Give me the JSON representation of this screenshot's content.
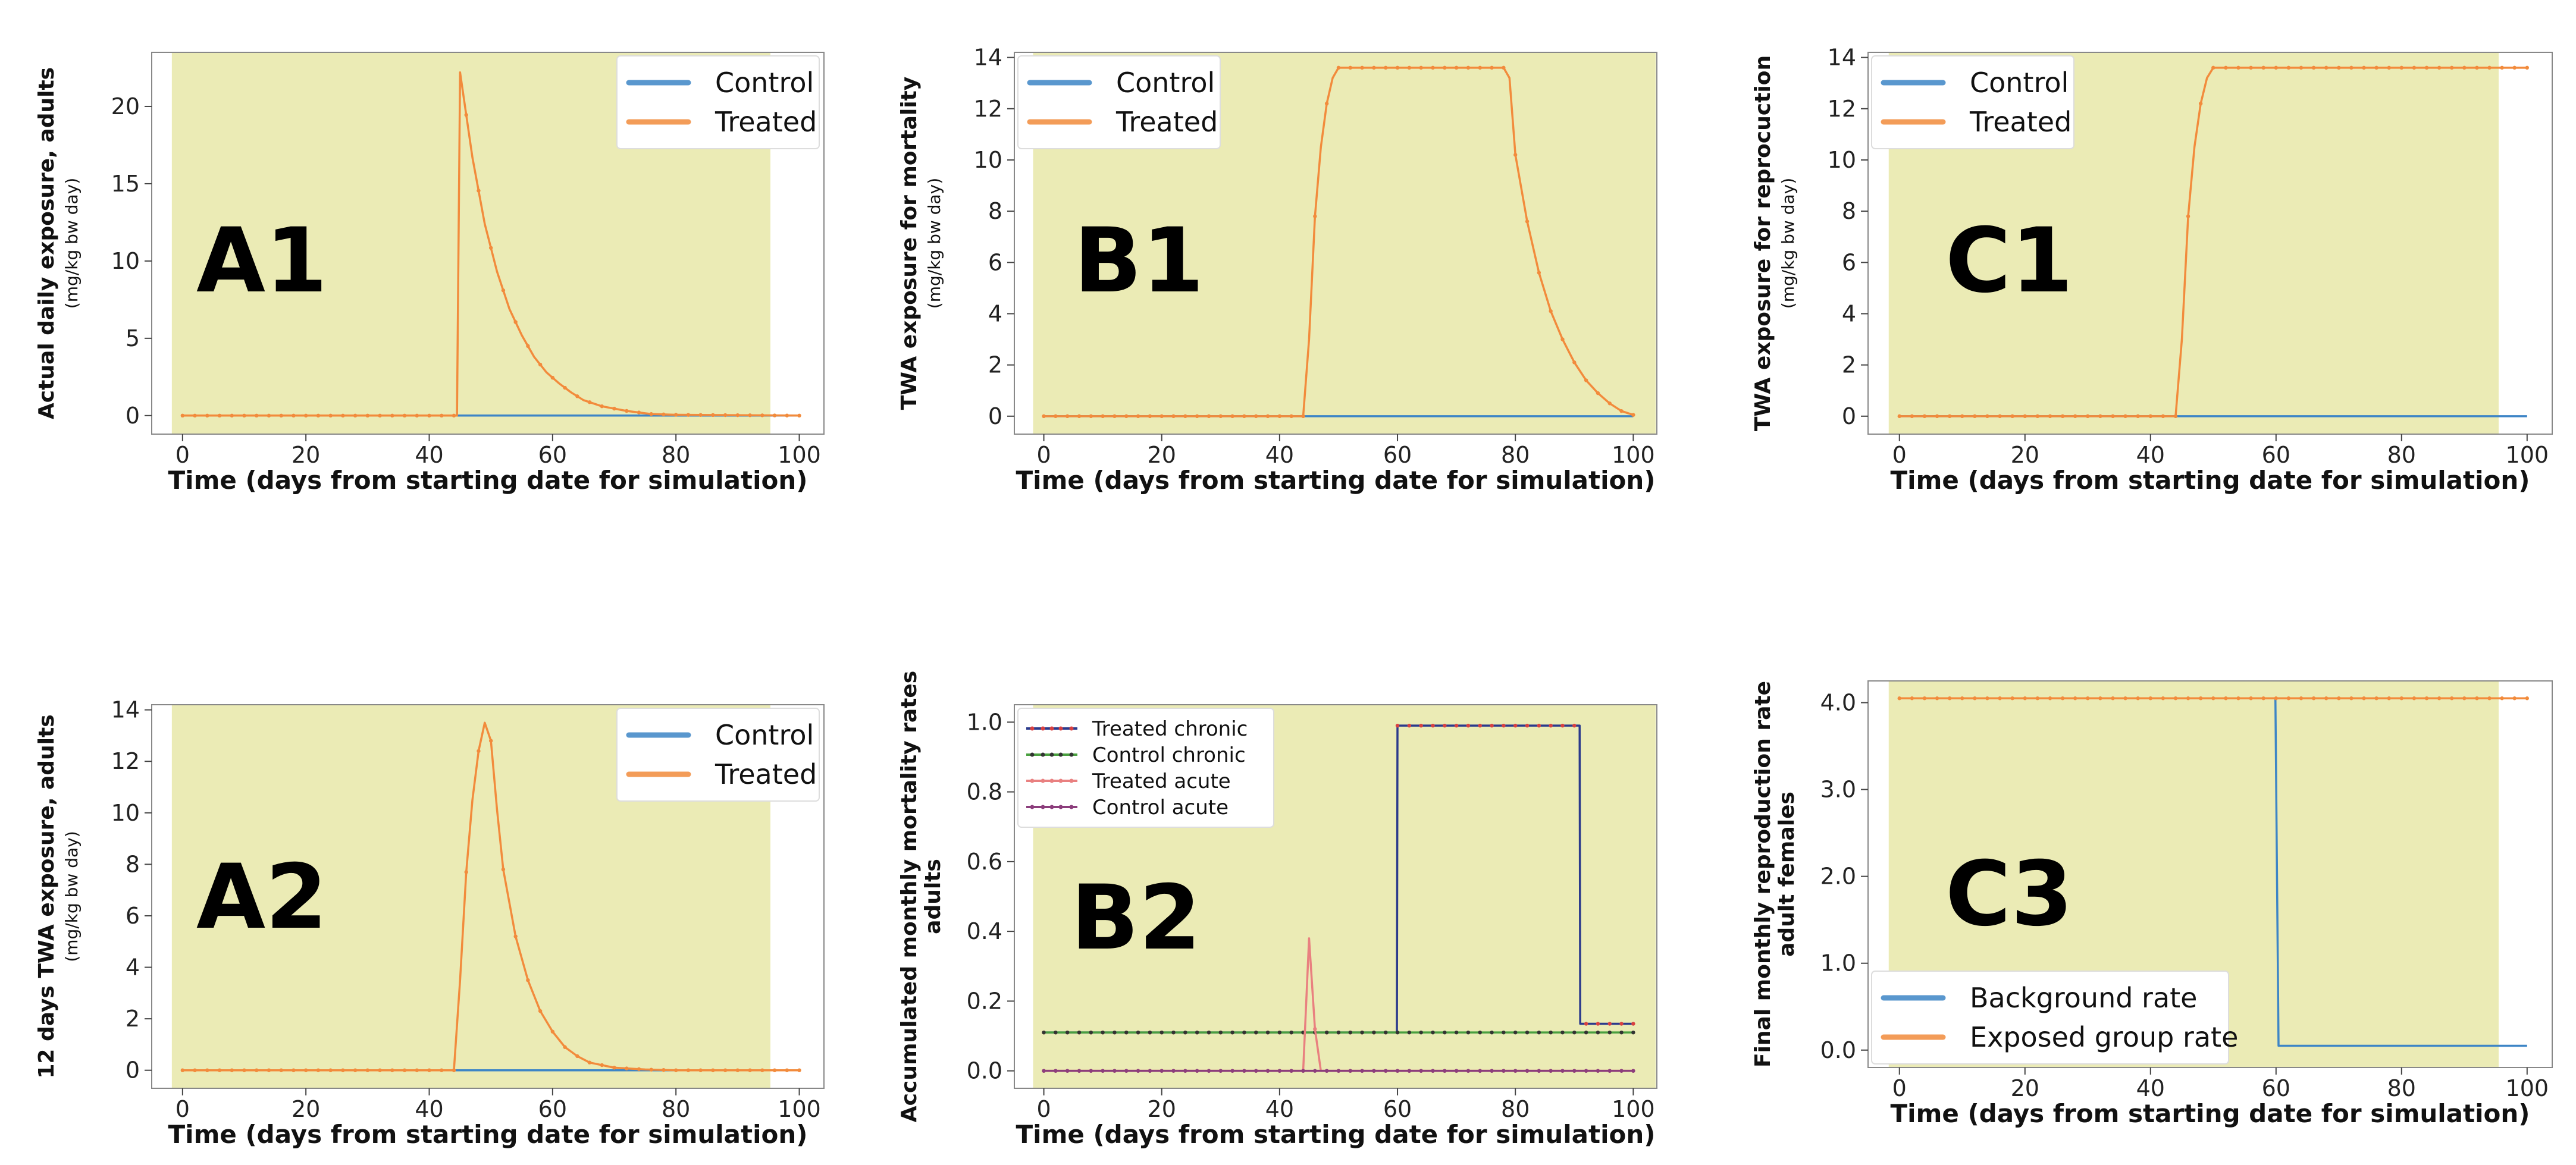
{
  "colors": {
    "plot_bg": "#ebebb5",
    "control": "#3d85c6",
    "treated": "#f28b3c",
    "treated_chronic": "#2b3a8c",
    "control_chronic": "#4aa040",
    "treated_acute": "#e98080",
    "control_acute": "#8c3e7c",
    "treated_chronic_marker": "#d94040",
    "control_chronic_marker": "#333333"
  },
  "chart_data": [
    {
      "id": "A1",
      "type": "line",
      "panel_label": "A1",
      "xlabel": "Time (days from starting date for simulation)",
      "ylabel": "Actual daily exposure, adults",
      "ylabel_units": "(mg/kg bw day)",
      "xlim": [
        -5,
        104
      ],
      "ylim": [
        -1.2,
        23.5
      ],
      "xticks": [
        0,
        20,
        40,
        60,
        80,
        100
      ],
      "yticks": [
        0,
        5,
        10,
        15,
        20
      ],
      "ytick_labels": [
        "0",
        "5",
        "10",
        "15",
        "20"
      ],
      "legend_location": "top-right",
      "series": [
        {
          "name": "Control",
          "color_key": "control",
          "x": [
            0,
            100
          ],
          "y": [
            0,
            0
          ]
        },
        {
          "name": "Treated",
          "color_key": "treated",
          "markers": true,
          "x": [
            0,
            44.5,
            45,
            47,
            49,
            51,
            53,
            55,
            57,
            59,
            61,
            63,
            65,
            68,
            72,
            76,
            80,
            100
          ],
          "y": [
            0,
            0,
            22.2,
            16.7,
            12.4,
            9.3,
            6.9,
            5.2,
            3.8,
            2.8,
            2.1,
            1.5,
            1.0,
            0.6,
            0.3,
            0.1,
            0.05,
            0
          ]
        }
      ]
    },
    {
      "id": "B1",
      "type": "line",
      "panel_label": "B1",
      "xlabel": "Time (days from starting date for simulation)",
      "ylabel": "TWA exposure for mortality",
      "ylabel_units": "(mg/kg bw day)",
      "xlim": [
        -5,
        104
      ],
      "ylim": [
        -0.7,
        14.2
      ],
      "xticks": [
        0,
        20,
        40,
        60,
        80,
        100
      ],
      "yticks": [
        0,
        2,
        4,
        6,
        8,
        10,
        12,
        14
      ],
      "ytick_labels": [
        "0",
        "2",
        "4",
        "6",
        "8",
        "10",
        "12",
        "14"
      ],
      "legend_location": "top-left",
      "series": [
        {
          "name": "Control",
          "color_key": "control",
          "x": [
            0,
            100
          ],
          "y": [
            0,
            0
          ]
        },
        {
          "name": "Treated",
          "color_key": "treated",
          "markers": true,
          "x": [
            0,
            44,
            45,
            46,
            47,
            48,
            49,
            50,
            60,
            70,
            78,
            79,
            80,
            82,
            84,
            86,
            88,
            90,
            92,
            94,
            96,
            98,
            100
          ],
          "y": [
            0,
            0,
            3.0,
            7.8,
            10.5,
            12.2,
            13.2,
            13.6,
            13.6,
            13.6,
            13.6,
            13.2,
            10.2,
            7.6,
            5.6,
            4.1,
            3.0,
            2.1,
            1.4,
            0.9,
            0.5,
            0.2,
            0.05
          ]
        }
      ]
    },
    {
      "id": "C1",
      "type": "line",
      "panel_label": "C1",
      "xlabel": "Time (days from starting date for simulation)",
      "ylabel": "TWA exposure for reprocuction",
      "ylabel_units": "(mg/kg bw day)",
      "xlim": [
        -5,
        104
      ],
      "ylim": [
        -0.7,
        14.2
      ],
      "xticks": [
        0,
        20,
        40,
        60,
        80,
        100
      ],
      "yticks": [
        0,
        2,
        4,
        6,
        8,
        10,
        12,
        14
      ],
      "ytick_labels": [
        "0",
        "2",
        "4",
        "6",
        "8",
        "10",
        "12",
        "14"
      ],
      "legend_location": "top-left",
      "series": [
        {
          "name": "Control",
          "color_key": "control",
          "x": [
            0,
            100
          ],
          "y": [
            0,
            0
          ]
        },
        {
          "name": "Treated",
          "color_key": "treated",
          "markers": true,
          "x": [
            0,
            44,
            45,
            46,
            47,
            48,
            49,
            50,
            60,
            70,
            80,
            90,
            100
          ],
          "y": [
            0,
            0,
            3.0,
            7.8,
            10.5,
            12.2,
            13.2,
            13.6,
            13.6,
            13.6,
            13.6,
            13.6,
            13.6
          ]
        }
      ]
    },
    {
      "id": "A2",
      "type": "line",
      "panel_label": "A2",
      "xlabel": "Time (days from starting date for simulation)",
      "ylabel": "12 days TWA exposure, adults",
      "ylabel_units": "(mg/kg bw day)",
      "xlim": [
        -5,
        104
      ],
      "ylim": [
        -0.7,
        14.2
      ],
      "xticks": [
        0,
        20,
        40,
        60,
        80,
        100
      ],
      "yticks": [
        0,
        2,
        4,
        6,
        8,
        10,
        12,
        14
      ],
      "ytick_labels": [
        "0",
        "2",
        "4",
        "6",
        "8",
        "10",
        "12",
        "14"
      ],
      "legend_location": "top-right",
      "series": [
        {
          "name": "Control",
          "color_key": "control",
          "x": [
            0,
            100
          ],
          "y": [
            0,
            0
          ]
        },
        {
          "name": "Treated",
          "color_key": "treated",
          "markers": true,
          "x": [
            0,
            44,
            45,
            46,
            47,
            48,
            49,
            50,
            51,
            52,
            54,
            56,
            58,
            60,
            62,
            64,
            66,
            70,
            75,
            80,
            100
          ],
          "y": [
            0,
            0,
            3.5,
            7.7,
            10.5,
            12.4,
            13.5,
            12.8,
            10.1,
            7.8,
            5.2,
            3.5,
            2.3,
            1.5,
            0.9,
            0.55,
            0.3,
            0.1,
            0.03,
            0,
            0
          ]
        }
      ]
    },
    {
      "id": "B2",
      "type": "line",
      "panel_label": "B2",
      "xlabel": "Time (days from starting date for simulation)",
      "ylabel": "Accumulated monthly mortality rates",
      "ylabel_units": "adults",
      "xlim": [
        -5,
        104
      ],
      "ylim": [
        -0.05,
        1.05
      ],
      "xticks": [
        0,
        20,
        40,
        60,
        80,
        100
      ],
      "yticks": [
        0.0,
        0.2,
        0.4,
        0.6,
        0.8,
        1.0
      ],
      "ytick_labels": [
        "0.0",
        "0.2",
        "0.4",
        "0.6",
        "0.8",
        "1.0"
      ],
      "legend_location": "top-left",
      "series": [
        {
          "name": "Treated chronic",
          "color_key": "treated_chronic",
          "markers": true,
          "marker_color_key": "treated_chronic_marker",
          "x": [
            0,
            59.9,
            60,
            90.9,
            91,
            100
          ],
          "y": [
            0.11,
            0.11,
            0.99,
            0.99,
            0.135,
            0.135
          ]
        },
        {
          "name": "Control chronic",
          "color_key": "control_chronic",
          "markers": true,
          "marker_color_key": "control_chronic_marker",
          "x": [
            0,
            100
          ],
          "y": [
            0.11,
            0.11
          ]
        },
        {
          "name": "Treated acute",
          "color_key": "treated_acute",
          "markers": true,
          "x": [
            0,
            44,
            45,
            46,
            47,
            100
          ],
          "y": [
            0,
            0,
            0.38,
            0.12,
            0,
            0
          ]
        },
        {
          "name": "Control acute",
          "color_key": "control_acute",
          "markers": true,
          "x": [
            0,
            100
          ],
          "y": [
            0,
            0
          ]
        }
      ]
    },
    {
      "id": "C3",
      "type": "line",
      "panel_label": "C3",
      "xlabel": "Time (days from starting date for simulation)",
      "ylabel": "Final monthly reproduction rate",
      "ylabel_units": "adult females",
      "xlim": [
        -5,
        104
      ],
      "ylim": [
        -0.2,
        4.25
      ],
      "xticks": [
        0,
        20,
        40,
        60,
        80,
        100
      ],
      "yticks": [
        0.0,
        1.0,
        2.0,
        3.0,
        4.0
      ],
      "ytick_labels": [
        "0.0",
        "1.0",
        "2.0",
        "3.0",
        "4.0"
      ],
      "legend_location": "bottom-left",
      "series": [
        {
          "name": "Background rate",
          "color_key": "control",
          "x": [
            0,
            59.9,
            60.4,
            100
          ],
          "y": [
            4.05,
            4.05,
            0.05,
            0.05
          ]
        },
        {
          "name": "Exposed  group rate",
          "color_key": "treated",
          "markers": true,
          "x": [
            0,
            100
          ],
          "y": [
            4.05,
            4.05
          ]
        }
      ]
    }
  ]
}
